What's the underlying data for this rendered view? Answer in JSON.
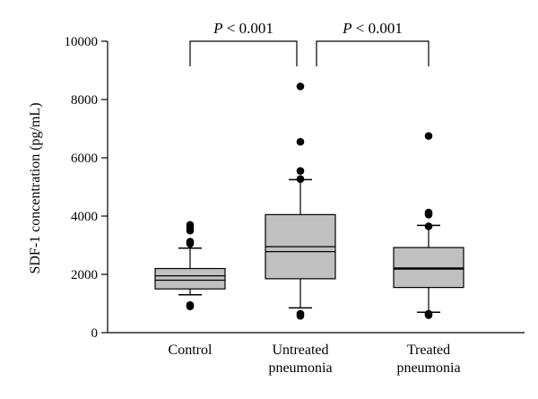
{
  "chart_data": {
    "type": "box",
    "ylabel": "SDF-1 concentration (pg/mL)",
    "ylim": [
      0,
      10000
    ],
    "yticks": [
      0,
      2000,
      4000,
      6000,
      8000,
      10000
    ],
    "yticks_labels": [
      "0",
      "2000",
      "4000",
      "6000",
      "8000",
      "10000"
    ],
    "categories": [
      {
        "id": "control",
        "lines": [
          "Control"
        ]
      },
      {
        "id": "untreated",
        "lines": [
          "Untreated",
          "pneumonia"
        ]
      },
      {
        "id": "treated",
        "lines": [
          "Treated",
          "pneumonia"
        ]
      }
    ],
    "boxes": [
      {
        "category": "control",
        "whisker_low": 1300,
        "q1": 1500,
        "median": 1800,
        "mean": 1950,
        "q3": 2200,
        "whisker_high": 2900,
        "outliers": [
          900,
          950,
          3050,
          3120,
          3500,
          3600,
          3700
        ]
      },
      {
        "category": "untreated",
        "whisker_low": 850,
        "q1": 1850,
        "median": 2780,
        "mean": 2950,
        "q3": 4050,
        "whisker_high": 5250,
        "outliers": [
          580,
          650,
          5270,
          5550,
          6550,
          8450
        ]
      },
      {
        "category": "treated",
        "whisker_low": 700,
        "q1": 1550,
        "median": 2180,
        "mean": 2220,
        "q3": 2920,
        "whisker_high": 3680,
        "outliers": [
          600,
          650,
          3650,
          4050,
          4120,
          6750
        ]
      }
    ],
    "comparisons": [
      {
        "from": "control",
        "to": "untreated",
        "p_symbol": "P",
        "p_text": "< 0.001"
      },
      {
        "from": "untreated",
        "to": "treated",
        "p_symbol": "P",
        "p_text": "< 0.001"
      }
    ],
    "colors": {
      "box_fill": "#c0c0c0",
      "stroke": "#000000",
      "outlier": "#000000"
    }
  }
}
